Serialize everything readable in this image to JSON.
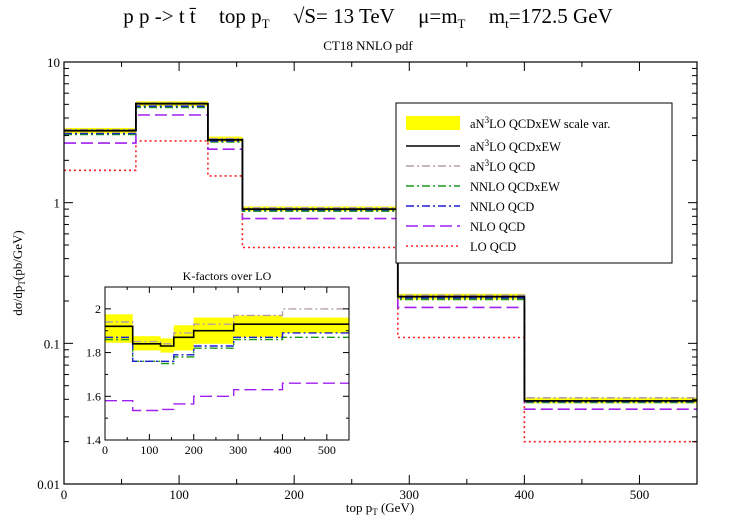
{
  "chart_data": [
    {
      "type": "line",
      "subtype": "step-histogram",
      "title_parts": {
        "process": "p p -> t t̄",
        "observable": "top p",
        "observable_sub": "T",
        "energy": "√S= 13 TeV",
        "scale": "μ=m",
        "scale_sub": "T",
        "mass_label": "m",
        "mass_sub": "t",
        "mass_value": "=172.5 GeV"
      },
      "subtitle": "CT18 NNLO pdf",
      "xlabel": "top p",
      "xlabel_sub": "T",
      "xlabel_unit": " (GeV)",
      "ylabel": "dσ/dp",
      "ylabel_sub": "T",
      "ylabel_unit": "(pb/GeV)",
      "xlim": [
        0,
        550
      ],
      "ylim": [
        0.01,
        10
      ],
      "yscale": "log",
      "xticks": [
        "0",
        "100",
        "200",
        "300",
        "400",
        "500"
      ],
      "yticks": [
        "0.01",
        "0.1",
        "1",
        "10"
      ],
      "bin_edges": [
        0,
        62.5,
        125,
        155,
        290,
        400,
        550
      ],
      "legend_position": "top-right",
      "band": {
        "name": "aN³LO QCDxEW scale var.",
        "legend_text": "aN",
        "legend_sup": "3",
        "legend_rest": "LO QCDxEW scale var.",
        "color": "#ffff00"
      },
      "series": [
        {
          "name": "aN³LO QCDxEW",
          "legend_text": "aN",
          "legend_sup": "3",
          "legend_rest": "LO QCDxEW",
          "color": "#000000",
          "dash": "",
          "values": [
            3.25,
            5.05,
            2.8,
            0.9,
            0.215,
            0.039
          ]
        },
        {
          "name": "aN³LO QCD",
          "legend_text": "aN",
          "legend_sup": "3",
          "legend_rest": "LO QCD",
          "color": "#b4a0a8",
          "dash": "8,3,2,3",
          "values": [
            3.3,
            5.1,
            2.85,
            0.92,
            0.22,
            0.041
          ]
        },
        {
          "name": "NNLO QCDxEW",
          "legend_text": "NNLO QCDxEW",
          "legend_sup": "",
          "legend_rest": "",
          "color": "#1a9a1a",
          "dash": "8,3,2,3",
          "values": [
            3.05,
            4.75,
            2.7,
            0.87,
            0.205,
            0.038
          ]
        },
        {
          "name": "NNLO QCD",
          "legend_text": "NNLO QCD",
          "legend_sup": "",
          "legend_rest": "",
          "color": "#1f1fd0",
          "dash": "8,3,2,3",
          "values": [
            3.1,
            4.85,
            2.75,
            0.89,
            0.21,
            0.0385
          ]
        },
        {
          "name": "NLO QCD",
          "legend_text": "NLO QCD",
          "legend_sup": "",
          "legend_rest": "",
          "color": "#a020f0",
          "dash": "12,5",
          "values": [
            2.65,
            4.2,
            2.4,
            0.77,
            0.18,
            0.034
          ]
        },
        {
          "name": "LO QCD",
          "legend_text": "LO QCD",
          "legend_sup": "",
          "legend_rest": "",
          "color": "#ff2020",
          "dash": "2,3",
          "values": [
            1.7,
            2.75,
            1.55,
            0.48,
            0.11,
            0.02
          ]
        }
      ],
      "band_values": {
        "low": [
          3.1,
          4.85,
          2.7,
          0.87,
          0.205,
          0.0375
        ],
        "high": [
          3.4,
          5.25,
          2.95,
          0.94,
          0.225,
          0.041
        ]
      }
    },
    {
      "type": "line",
      "subtype": "step-histogram",
      "title": "K-factors over LO",
      "xlim": [
        0,
        550
      ],
      "ylim": [
        1.4,
        2.1
      ],
      "xticks": [
        "0",
        "100",
        "200",
        "300",
        "400",
        "500"
      ],
      "yticks": [
        "1.4",
        "1.6",
        "1.8",
        "2"
      ],
      "bin_edges": [
        0,
        62.5,
        125,
        155,
        200,
        290,
        400,
        550
      ],
      "band": {
        "color": "#ffff00",
        "low": [
          1.845,
          1.81,
          1.8,
          1.81,
          1.84,
          1.87,
          1.89
        ],
        "high": [
          1.975,
          1.875,
          1.865,
          1.925,
          1.96,
          1.97,
          1.96
        ]
      },
      "series": [
        {
          "name": "aN³LO QCDxEW",
          "color": "#000000",
          "dash": "",
          "values": [
            1.92,
            1.84,
            1.83,
            1.87,
            1.9,
            1.93,
            1.93
          ]
        },
        {
          "name": "aN³LO QCD",
          "color": "#b4a0a8",
          "dash": "8,3,2,3",
          "values": [
            1.94,
            1.85,
            1.84,
            1.89,
            1.93,
            1.97,
            2.0
          ]
        },
        {
          "name": "NNLO QCDxEW",
          "color": "#1a9a1a",
          "dash": "8,3,2,3",
          "values": [
            1.86,
            1.76,
            1.75,
            1.78,
            1.82,
            1.86,
            1.87
          ]
        },
        {
          "name": "NNLO QCD",
          "color": "#1f1fd0",
          "dash": "8,3,2,3",
          "values": [
            1.87,
            1.76,
            1.76,
            1.79,
            1.83,
            1.87,
            1.89
          ]
        },
        {
          "name": "NLO QCD",
          "color": "#a020f0",
          "dash": "12,5",
          "values": [
            1.58,
            1.535,
            1.54,
            1.565,
            1.6,
            1.63,
            1.66
          ]
        }
      ]
    }
  ]
}
